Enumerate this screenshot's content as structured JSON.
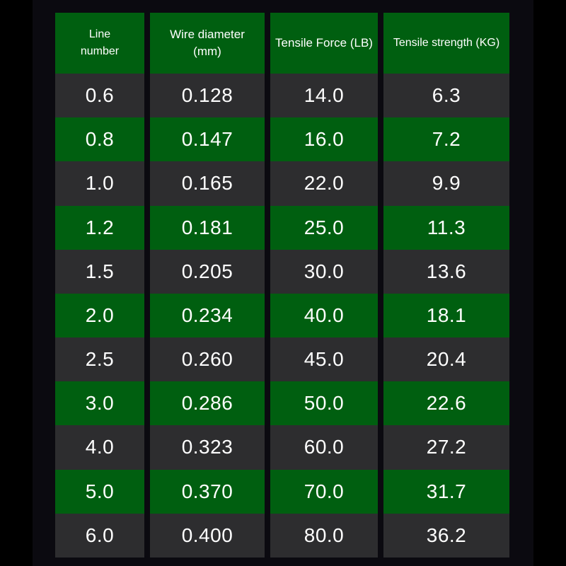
{
  "colors": {
    "header_bg": "#005f10",
    "row_green": "#005f10",
    "row_dark": "#2d2d2f",
    "text": "#ffffff",
    "background": "#0b0a10"
  },
  "table": {
    "headers": [
      "Line\nnumber",
      "Wire diameter (mm)",
      "Tensile Force (LB)",
      "Tensile strength (KG)"
    ],
    "rows": [
      [
        "0.6",
        "0.128",
        "14.0",
        "6.3"
      ],
      [
        "0.8",
        "0.147",
        "16.0",
        "7.2"
      ],
      [
        "1.0",
        "0.165",
        "22.0",
        "9.9"
      ],
      [
        "1.2",
        "0.181",
        "25.0",
        "11.3"
      ],
      [
        "1.5",
        "0.205",
        "30.0",
        "13.6"
      ],
      [
        "2.0",
        "0.234",
        "40.0",
        "18.1"
      ],
      [
        "2.5",
        "0.260",
        "45.0",
        "20.4"
      ],
      [
        "3.0",
        "0.286",
        "50.0",
        "22.6"
      ],
      [
        "4.0",
        "0.323",
        "60.0",
        "27.2"
      ],
      [
        "5.0",
        "0.370",
        "70.0",
        "31.7"
      ],
      [
        "6.0",
        "0.400",
        "80.0",
        "36.2"
      ]
    ]
  }
}
